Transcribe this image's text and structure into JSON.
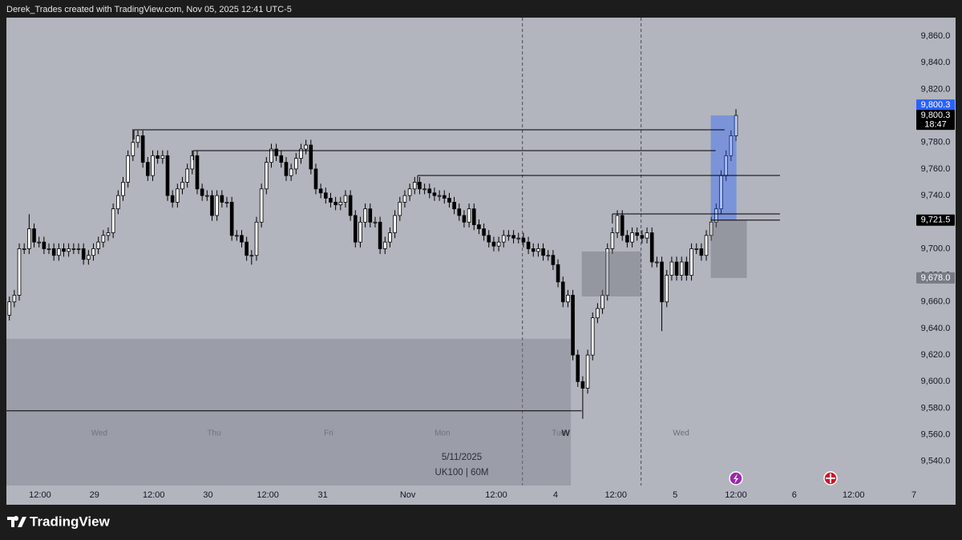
{
  "header": "Derek_Trades created with TradingView.com, Nov 05, 2025 12:41 UTC-5",
  "brand": "TradingView",
  "chart_data": {
    "type": "candlestick",
    "annotations": [
      "5/11/2025",
      "UK100 | 60M"
    ],
    "marker_text": "W",
    "xlim": [
      -0.6,
      183
    ],
    "ylim": [
      9521.8,
      9873.9
    ],
    "yticks": [
      {
        "value": 9540,
        "label": "9,540.0"
      },
      {
        "value": 9560,
        "label": "9,560.0"
      },
      {
        "value": 9580,
        "label": "9,580.0"
      },
      {
        "value": 9600,
        "label": "9,600.0"
      },
      {
        "value": 9620,
        "label": "9,620.0"
      },
      {
        "value": 9640,
        "label": "9,640.0"
      },
      {
        "value": 9660,
        "label": "9,660.0"
      },
      {
        "value": 9680,
        "label": "9,680.0"
      },
      {
        "value": 9700,
        "label": "9,700.0"
      },
      {
        "value": 9720,
        "label": "9,720.0"
      },
      {
        "value": 9740,
        "label": "9,740.0"
      },
      {
        "value": 9760,
        "label": "9,760.0"
      },
      {
        "value": 9780,
        "label": "9,780.0"
      },
      {
        "value": 9800,
        "label": "9,800.0"
      },
      {
        "value": 9820,
        "label": "9,820.0"
      },
      {
        "value": 9840,
        "label": "9,840.0"
      },
      {
        "value": 9860,
        "label": "9,860.0"
      }
    ],
    "xticks": [
      {
        "value": 6.2,
        "label": "12:00"
      },
      {
        "value": 17.2,
        "label": "29"
      },
      {
        "value": 29.2,
        "label": "12:00"
      },
      {
        "value": 40.2,
        "label": "30"
      },
      {
        "value": 52.3,
        "label": "12:00"
      },
      {
        "value": 63.4,
        "label": "31"
      },
      {
        "value": 80.6,
        "label": "Nov"
      },
      {
        "value": 98.5,
        "label": "12:00"
      },
      {
        "value": 110.5,
        "label": "4"
      },
      {
        "value": 122.7,
        "label": "12:00"
      },
      {
        "value": 134.7,
        "label": "5"
      },
      {
        "value": 147,
        "label": "12:00"
      },
      {
        "value": 158.8,
        "label": "6"
      },
      {
        "value": 170.8,
        "label": "12:00"
      },
      {
        "value": 183,
        "label": "7"
      }
    ],
    "day_labels": [
      {
        "label": "Wed",
        "x": 18.2
      },
      {
        "label": "Thu",
        "x": 41.4
      },
      {
        "label": "Fri",
        "x": 64.6
      },
      {
        "label": "Mon",
        "x": 87.6
      },
      {
        "label": "Tue",
        "x": 111.1
      },
      {
        "label": "Wed",
        "x": 135.9
      }
    ],
    "up_color": "#ffffff",
    "down_color": "#000000",
    "open": [
      9650,
      9660,
      9665,
      9700,
      9700,
      9715,
      9705,
      9705,
      9700,
      9700,
      9695,
      9700,
      9698,
      9700,
      9700,
      9700,
      9692,
      9695,
      9700,
      9705,
      9710,
      9712,
      9730,
      9740,
      9750,
      9770,
      9780,
      9785,
      9765,
      9755,
      9770,
      9768,
      9770,
      9740,
      9735,
      9745,
      9750,
      9760,
      9770,
      9745,
      9740,
      9740,
      9725,
      9740,
      9735,
      9735,
      9710,
      9710,
      9705,
      9695,
      9695,
      9720,
      9745,
      9765,
      9775,
      9770,
      9765,
      9755,
      9760,
      9768,
      9775,
      9778,
      9760,
      9745,
      9742,
      9738,
      9735,
      9733,
      9735,
      9740,
      9725,
      9705,
      9720,
      9730,
      9720,
      9720,
      9700,
      9705,
      9712,
      9725,
      9735,
      9740,
      9745,
      9750,
      9745,
      9745,
      9742,
      9740,
      9740,
      9738,
      9735,
      9730,
      9725,
      9720,
      9730,
      9718,
      9715,
      9710,
      9705,
      9702,
      9705,
      9710,
      9710,
      9708,
      9708,
      9705,
      9700,
      9698,
      9700,
      9695,
      9695,
      9688,
      9675,
      9660,
      9665,
      9620,
      9600,
      9595,
      9620,
      9648,
      9655,
      9665,
      9700,
      9712,
      9725,
      9710,
      9705,
      9712,
      9710,
      9708,
      9712,
      9690,
      9690,
      9660,
      9680,
      9690,
      9680,
      9690,
      9680,
      9700,
      9700,
      9695,
      9710,
      9720,
      9730,
      9755,
      9770,
      9785
    ],
    "high": [
      9664,
      9669,
      9704,
      9704,
      9726,
      9719,
      9709,
      9709,
      9704,
      9704,
      9704,
      9704,
      9704,
      9704,
      9704,
      9704,
      9699,
      9704,
      9709,
      9714,
      9716,
      9734,
      9744,
      9754,
      9774,
      9790,
      9789,
      9789,
      9769,
      9774,
      9774,
      9774,
      9774,
      9744,
      9749,
      9754,
      9764,
      9774,
      9774,
      9749,
      9744,
      9744,
      9744,
      9744,
      9739,
      9739,
      9714,
      9714,
      9709,
      9699,
      9724,
      9749,
      9769,
      9779,
      9779,
      9774,
      9769,
      9764,
      9772,
      9779,
      9782,
      9782,
      9764,
      9749,
      9746,
      9742,
      9739,
      9739,
      9744,
      9744,
      9729,
      9724,
      9734,
      9734,
      9724,
      9724,
      9709,
      9716,
      9729,
      9739,
      9744,
      9749,
      9754,
      9754,
      9749,
      9749,
      9746,
      9744,
      9744,
      9742,
      9739,
      9734,
      9729,
      9734,
      9734,
      9722,
      9719,
      9714,
      9709,
      9709,
      9714,
      9714,
      9714,
      9712,
      9712,
      9709,
      9704,
      9704,
      9704,
      9699,
      9699,
      9692,
      9679,
      9669,
      9669,
      9624,
      9604,
      9624,
      9652,
      9659,
      9669,
      9704,
      9716,
      9729,
      9729,
      9714,
      9716,
      9716,
      9714,
      9716,
      9716,
      9694,
      9694,
      9684,
      9694,
      9694,
      9694,
      9694,
      9704,
      9704,
      9704,
      9714,
      9724,
      9734,
      9759,
      9774,
      9789,
      9805
    ],
    "low": [
      9646,
      9656,
      9661,
      9696,
      9696,
      9701,
      9701,
      9696,
      9696,
      9691,
      9691,
      9694,
      9694,
      9696,
      9696,
      9688,
      9688,
      9691,
      9696,
      9701,
      9706,
      9708,
      9726,
      9736,
      9746,
      9766,
      9776,
      9761,
      9751,
      9751,
      9764,
      9764,
      9736,
      9731,
      9731,
      9741,
      9746,
      9756,
      9741,
      9736,
      9736,
      9721,
      9721,
      9731,
      9731,
      9706,
      9706,
      9701,
      9691,
      9688,
      9691,
      9716,
      9741,
      9761,
      9766,
      9761,
      9751,
      9751,
      9756,
      9764,
      9771,
      9756,
      9741,
      9738,
      9734,
      9731,
      9729,
      9729,
      9731,
      9721,
      9701,
      9701,
      9716,
      9716,
      9716,
      9696,
      9696,
      9701,
      9708,
      9721,
      9731,
      9736,
      9741,
      9741,
      9741,
      9738,
      9736,
      9736,
      9734,
      9731,
      9726,
      9721,
      9716,
      9716,
      9714,
      9711,
      9706,
      9701,
      9698,
      9698,
      9701,
      9706,
      9704,
      9704,
      9701,
      9696,
      9694,
      9694,
      9691,
      9691,
      9684,
      9671,
      9656,
      9656,
      9616,
      9596,
      9572,
      9591,
      9616,
      9644,
      9651,
      9661,
      9696,
      9708,
      9706,
      9701,
      9701,
      9706,
      9704,
      9704,
      9686,
      9686,
      9638,
      9656,
      9676,
      9676,
      9676,
      9676,
      9676,
      9696,
      9691,
      9691,
      9706,
      9716,
      9726,
      9751,
      9766,
      9781
    ],
    "close": [
      9660,
      9665,
      9700,
      9700,
      9715,
      9705,
      9705,
      9700,
      9700,
      9695,
      9700,
      9698,
      9700,
      9700,
      9700,
      9692,
      9695,
      9700,
      9705,
      9710,
      9712,
      9730,
      9740,
      9750,
      9770,
      9780,
      9785,
      9765,
      9755,
      9770,
      9768,
      9770,
      9740,
      9735,
      9745,
      9750,
      9760,
      9770,
      9745,
      9740,
      9740,
      9725,
      9740,
      9735,
      9735,
      9710,
      9710,
      9705,
      9695,
      9695,
      9720,
      9745,
      9765,
      9775,
      9770,
      9765,
      9755,
      9760,
      9768,
      9775,
      9778,
      9760,
      9745,
      9742,
      9738,
      9735,
      9733,
      9735,
      9740,
      9725,
      9705,
      9720,
      9730,
      9720,
      9720,
      9700,
      9705,
      9712,
      9725,
      9735,
      9740,
      9745,
      9750,
      9745,
      9745,
      9742,
      9740,
      9740,
      9738,
      9735,
      9730,
      9725,
      9720,
      9730,
      9718,
      9715,
      9710,
      9705,
      9702,
      9705,
      9710,
      9710,
      9708,
      9708,
      9705,
      9700,
      9698,
      9700,
      9695,
      9695,
      9688,
      9675,
      9660,
      9665,
      9620,
      9600,
      9595,
      9620,
      9648,
      9655,
      9665,
      9700,
      9712,
      9725,
      9710,
      9705,
      9712,
      9710,
      9708,
      9712,
      9690,
      9690,
      9660,
      9680,
      9690,
      9680,
      9690,
      9680,
      9700,
      9700,
      9695,
      9710,
      9720,
      9730,
      9755,
      9770,
      9785,
      9800.3
    ],
    "zones": [
      {
        "x": [
          -0.6,
          113.6
        ],
        "y": [
          9521.8,
          9632.2
        ],
        "color": "rgba(120,123,134,0.4)"
      },
      {
        "x": [
          115.8,
          127.8
        ],
        "y": [
          9664.1,
          9697.9
        ],
        "color": "rgba(110,113,124,0.45)"
      },
      {
        "x": [
          141.9,
          147.1
        ],
        "y": [
          9721.5,
          9800.3
        ],
        "color": "rgba(41,98,255,0.4)"
      },
      {
        "x": [
          141.9,
          149.2
        ],
        "y": [
          9678,
          9721.5
        ],
        "color": "rgba(110,113,124,0.45)"
      }
    ],
    "levels": [
      {
        "price": 9789.5,
        "x": [
          25.2,
          144.7
        ]
      },
      {
        "price": 9773.8,
        "x": [
          37.2,
          142.9
        ]
      },
      {
        "price": 9755.1,
        "x": [
          82.6,
          155.9
        ]
      },
      {
        "price": 9726.2,
        "x": [
          122.0,
          155.9
        ]
      },
      {
        "price": 9721.5,
        "x": [
          141.9,
          155.9
        ]
      },
      {
        "price": 9578,
        "x": [
          -0.6,
          115.8
        ]
      }
    ],
    "vlines": [
      103.8,
      127.8
    ],
    "price_tags": [
      {
        "value": 9800.3,
        "label": "9,800.3",
        "color": "#2962ff"
      },
      {
        "value": 9800.3,
        "label": "9,800.3",
        "countdown": "18:47",
        "color": "#000000"
      },
      {
        "value": 9721.5,
        "label": "9,721.5",
        "color": "#000000"
      },
      {
        "value": 9678,
        "label": "9,678.0",
        "color": "#787b86"
      }
    ]
  }
}
